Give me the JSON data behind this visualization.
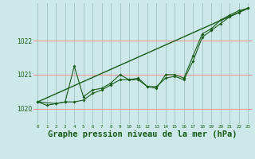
{
  "background_color": "#cce8e8",
  "grid_color_h": "#ff9999",
  "grid_color_v": "#99bbbb",
  "line_color": "#1a5c1a",
  "xlabel": "Graphe pression niveau de la mer (hPa)",
  "xlabel_fontsize": 7.5,
  "xlim": [
    -0.5,
    23.5
  ],
  "ylim": [
    1019.55,
    1023.1
  ],
  "yticks": [
    1020,
    1021,
    1022
  ],
  "xticks": [
    0,
    1,
    2,
    3,
    4,
    5,
    6,
    7,
    8,
    9,
    10,
    11,
    12,
    13,
    14,
    15,
    16,
    17,
    18,
    19,
    20,
    21,
    22,
    23
  ],
  "series1_x": [
    0,
    1,
    2,
    3,
    4,
    5,
    6,
    7,
    8,
    9,
    10,
    11,
    12,
    13,
    14,
    15,
    16,
    17,
    18,
    19,
    20,
    21,
    22,
    23
  ],
  "series1_y": [
    1020.2,
    1020.1,
    1020.15,
    1020.2,
    1021.25,
    1020.35,
    1020.55,
    1020.6,
    1020.75,
    1021.0,
    1020.85,
    1020.9,
    1020.65,
    1020.6,
    1021.0,
    1021.0,
    1020.9,
    1021.55,
    1022.2,
    1022.35,
    1022.6,
    1022.75,
    1022.88,
    1022.95
  ],
  "series2_x": [
    0,
    2,
    3,
    4,
    5,
    6,
    7,
    8,
    9,
    10,
    11,
    12,
    13,
    14,
    15,
    16,
    17,
    18,
    19,
    20,
    21,
    22,
    23
  ],
  "series2_y": [
    1020.2,
    1020.15,
    1020.2,
    1020.2,
    1020.25,
    1020.45,
    1020.55,
    1020.7,
    1020.85,
    1020.85,
    1020.85,
    1020.65,
    1020.65,
    1020.9,
    1020.95,
    1020.85,
    1021.4,
    1022.1,
    1022.3,
    1022.5,
    1022.7,
    1022.82,
    1022.95
  ],
  "trend_x": [
    0,
    23
  ],
  "trend_y": [
    1020.2,
    1022.95
  ]
}
